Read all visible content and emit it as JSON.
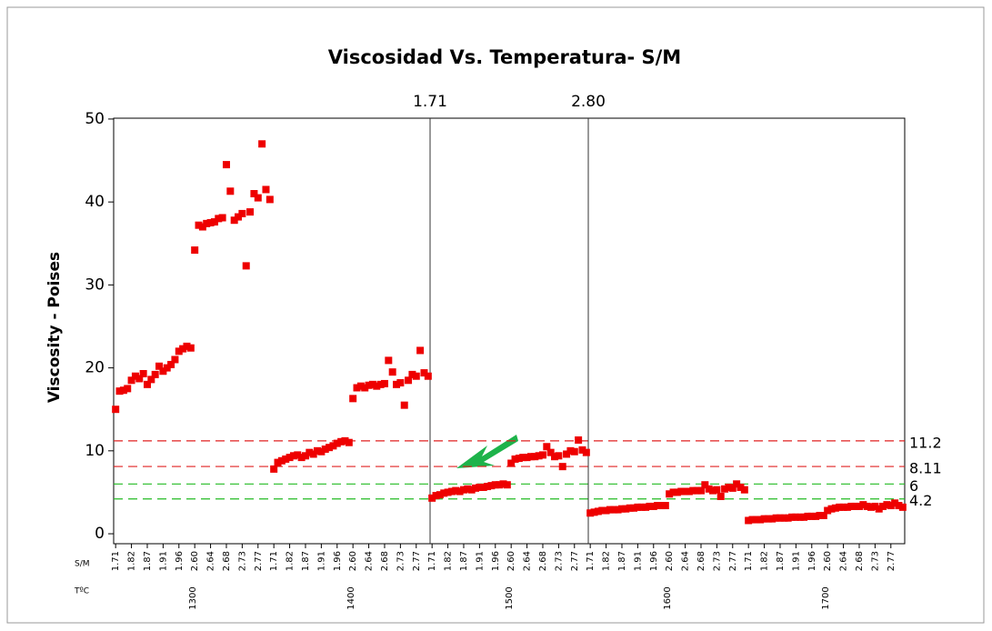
{
  "chart_data": {
    "type": "scatter",
    "title": "Viscosidad Vs. Temperatura- S/M",
    "ylabel": "Viscosity - Poises",
    "row_labels": [
      "S/M",
      "TºC"
    ],
    "groups": [
      "1300",
      "1400",
      "1500",
      "1600",
      "1700"
    ],
    "categories": [
      "1.71",
      null,
      null,
      null,
      "1.82",
      null,
      null,
      null,
      "1.87",
      null,
      null,
      null,
      "1.91",
      null,
      null,
      null,
      "1.96",
      null,
      null,
      null,
      "2.60",
      null,
      null,
      null,
      "2.64",
      null,
      null,
      null,
      "2.68",
      null,
      null,
      null,
      "2.73",
      null,
      null,
      null,
      "2.77",
      null,
      null,
      null,
      "1.71",
      null,
      null,
      null,
      "1.82",
      null,
      null,
      null,
      "1.87",
      null,
      null,
      null,
      "1.91",
      null,
      null,
      null,
      "1.96",
      null,
      null,
      null,
      "2.60",
      null,
      null,
      null,
      "2.64",
      null,
      null,
      null,
      "2.68",
      null,
      null,
      null,
      "2.73",
      null,
      null,
      null,
      "2.77",
      null,
      null,
      null,
      "1.71",
      null,
      null,
      null,
      "1.82",
      null,
      null,
      null,
      "1.87",
      null,
      null,
      null,
      "1.91",
      null,
      null,
      null,
      "1.96",
      null,
      null,
      null,
      "2.60",
      null,
      null,
      null,
      "2.64",
      null,
      null,
      null,
      "2.68",
      null,
      null,
      null,
      "2.73",
      null,
      null,
      null,
      "2.77",
      null,
      null,
      null,
      "1.71",
      null,
      null,
      null,
      "1.82",
      null,
      null,
      null,
      "1.87",
      null,
      null,
      null,
      "1.91",
      null,
      null,
      null,
      "1.96",
      null,
      null,
      null,
      "2.60",
      null,
      null,
      null,
      "2.64",
      null,
      null,
      null,
      "2.68",
      null,
      null,
      null,
      "2.73",
      null,
      null,
      null,
      "2.77",
      null,
      null,
      null,
      "1.71",
      null,
      null,
      null,
      "1.82",
      null,
      null,
      null,
      "1.87",
      null,
      null,
      null,
      "1.91",
      null,
      null,
      null,
      "1.96",
      null,
      null,
      null,
      "2.60",
      null,
      null,
      null,
      "2.64",
      null,
      null,
      null,
      "2.68",
      null,
      null,
      null,
      "2.73",
      null,
      null,
      null,
      "2.77",
      null,
      null,
      null
    ],
    "series": [
      {
        "color": "#ee0000",
        "values": [
          15,
          17.2,
          17.3,
          17.5,
          18.5,
          19,
          18.7,
          19.3,
          18,
          18.6,
          19.2,
          20.2,
          19.6,
          20,
          20.4,
          21,
          22,
          22.3,
          22.6,
          22.4,
          34.2,
          37.2,
          37,
          37.4,
          37.5,
          37.6,
          38,
          38.1,
          44.5,
          41.3,
          37.8,
          38.2,
          38.6,
          32.3,
          38.8,
          41,
          40.5,
          47,
          41.5,
          40.3,
          7.8,
          8.6,
          8.8,
          9,
          9.2,
          9.4,
          9.5,
          9.2,
          9.4,
          9.8,
          9.6,
          10,
          9.9,
          10.2,
          10.4,
          10.6,
          10.9,
          11.1,
          11.2,
          11,
          16.3,
          17.6,
          17.8,
          17.6,
          17.9,
          18,
          17.8,
          18,
          18.1,
          20.9,
          19.5,
          18,
          18.2,
          15.5,
          18.5,
          19.2,
          19,
          22.1,
          19.4,
          19,
          4.3,
          4.6,
          4.7,
          4.9,
          5,
          5.1,
          5.2,
          5.1,
          5.3,
          5.4,
          5.3,
          5.5,
          5.6,
          5.6,
          5.7,
          5.8,
          5.9,
          5.9,
          6,
          5.9,
          8.5,
          9,
          9.1,
          9.2,
          9.2,
          9.3,
          9.3,
          9.4,
          9.5,
          10.5,
          9.8,
          9.3,
          9.4,
          8.1,
          9.6,
          10,
          9.9,
          11.3,
          10.1,
          9.8,
          2.5,
          2.6,
          2.7,
          2.8,
          2.8,
          2.9,
          2.9,
          2.9,
          3,
          3,
          3.1,
          3.1,
          3.2,
          3.2,
          3.2,
          3.3,
          3.3,
          3.4,
          3.4,
          3.4,
          4.8,
          5,
          5,
          5.1,
          5.1,
          5.1,
          5.2,
          5.2,
          5.2,
          5.9,
          5.4,
          5.2,
          5.3,
          4.5,
          5.4,
          5.6,
          5.5,
          6,
          5.6,
          5.3,
          1.6,
          1.7,
          1.7,
          1.7,
          1.8,
          1.8,
          1.8,
          1.9,
          1.9,
          1.9,
          1.9,
          2,
          2,
          2,
          2,
          2.1,
          2.1,
          2.1,
          2.2,
          2.2,
          2.8,
          3,
          3.1,
          3.2,
          3.2,
          3.2,
          3.3,
          3.3,
          3.3,
          3.5,
          3.3,
          3.2,
          3.3,
          3,
          3.3,
          3.5,
          3.4,
          3.7,
          3.4,
          3.2
        ]
      }
    ],
    "ylim": [
      -1.2,
      50.1
    ],
    "yticks": [
      0,
      10,
      20,
      30,
      40,
      50
    ],
    "xref": [
      {
        "x": 79.5,
        "label": "1.71"
      },
      {
        "x": 119.5,
        "label": "2.80"
      }
    ],
    "yref": [
      {
        "value": 11.2,
        "color": "#e02020"
      },
      {
        "value": 8.11,
        "color": "#e02020"
      },
      {
        "value": 6,
        "color": "#22bb22"
      },
      {
        "value": 4.2,
        "color": "#22bb22"
      }
    ]
  }
}
